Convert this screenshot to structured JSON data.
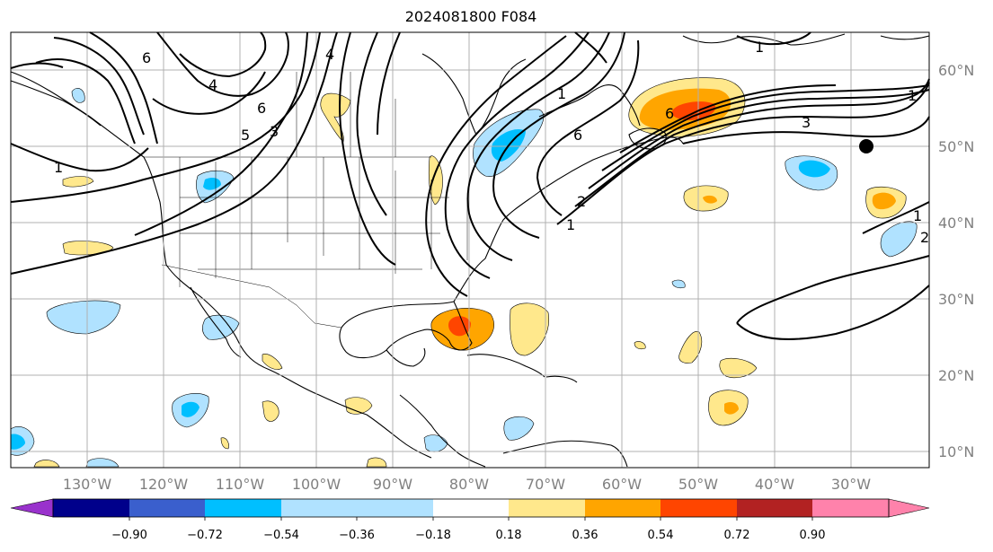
{
  "title": "2024081800 F084",
  "map": {
    "longitude_labels": [
      "130°W",
      "120°W",
      "110°W",
      "100°W",
      "90°W",
      "80°W",
      "70°W",
      "60°W",
      "50°W",
      "40°W",
      "30°W"
    ],
    "latitude_labels": [
      "60°N",
      "50°N",
      "40°N",
      "30°N",
      "20°N",
      "10°N"
    ],
    "contour_labels": [
      "6",
      "4",
      "4",
      "6",
      "5",
      "3",
      "1",
      "1",
      "6",
      "1",
      "1",
      "1",
      "2",
      "3",
      "6",
      "1",
      "2"
    ],
    "marker": "filled-black-dot",
    "colors": {
      "coast": "#000000",
      "grid": "#b0b0b0",
      "contour": "#000000"
    }
  },
  "colorbar": {
    "tick_labels": [
      "−0.90",
      "−0.72",
      "−0.54",
      "−0.36",
      "−0.18",
      "0.18",
      "0.36",
      "0.54",
      "0.72",
      "0.90"
    ],
    "colors": [
      "#9932cc",
      "#00008b",
      "#3a5fcd",
      "#00bfff",
      "#b0e2ff",
      "#ffffff",
      "#ffe88c",
      "#ffa500",
      "#ff4500",
      "#b22222",
      "#ff82ab"
    ]
  }
}
